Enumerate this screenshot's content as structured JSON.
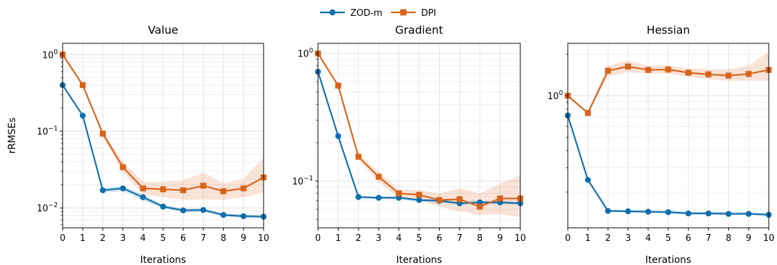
{
  "legend": [
    {
      "name": "ZOD-m",
      "color": "#0f6fae",
      "marker": "circle"
    },
    {
      "name": "DPI",
      "color": "#d9631b",
      "marker": "square"
    }
  ],
  "shared_ylabel": "rRMSEs",
  "chart_data": [
    {
      "type": "line",
      "title": "Value",
      "xlabel": "Iterations",
      "ylabel": "rRMSEs",
      "yscale": "log",
      "xlim": [
        0,
        10
      ],
      "ylim": [
        0.0055,
        1.4
      ],
      "x_ticks": [
        0,
        1,
        2,
        3,
        4,
        5,
        6,
        7,
        8,
        9,
        10
      ],
      "y_ticks": [
        {
          "value": 1,
          "label": "10^0",
          "base": "10",
          "exp": "0"
        },
        {
          "value": 0.1,
          "label": "10^-1",
          "base": "10",
          "exp": "−1"
        },
        {
          "value": 0.01,
          "label": "10^-2",
          "base": "10",
          "exp": "−2"
        }
      ],
      "grid": true,
      "x": [
        0,
        1,
        2,
        3,
        4,
        5,
        6,
        7,
        8,
        9,
        10
      ],
      "series": [
        {
          "name": "ZOD-m",
          "values": [
            0.4,
            0.16,
            0.017,
            0.018,
            0.0138,
            0.0104,
            0.0093,
            0.0094,
            0.0081,
            0.0078,
            0.0077
          ],
          "band_low": [
            0.4,
            0.16,
            0.016,
            0.0165,
            0.0125,
            0.0098,
            0.0088,
            0.0089,
            0.0077,
            0.0074,
            0.0073
          ],
          "band_high": [
            0.4,
            0.16,
            0.018,
            0.0195,
            0.0152,
            0.011,
            0.0098,
            0.0099,
            0.0085,
            0.0082,
            0.0081
          ]
        },
        {
          "name": "DPI",
          "values": [
            1.0,
            0.4,
            0.093,
            0.034,
            0.018,
            0.0175,
            0.017,
            0.0195,
            0.0165,
            0.018,
            0.025
          ],
          "band_low": [
            1.0,
            0.4,
            0.085,
            0.029,
            0.015,
            0.0138,
            0.0128,
            0.0128,
            0.0128,
            0.0138,
            0.016
          ],
          "band_high": [
            1.0,
            0.4,
            0.1,
            0.04,
            0.022,
            0.022,
            0.023,
            0.029,
            0.021,
            0.024,
            0.045
          ]
        }
      ]
    },
    {
      "type": "line",
      "title": "Gradient",
      "xlabel": "Iterations",
      "ylabel": "",
      "yscale": "log",
      "xlim": [
        0,
        10
      ],
      "ylim": [
        0.043,
        1.2
      ],
      "x_ticks": [
        0,
        1,
        2,
        3,
        4,
        5,
        6,
        7,
        8,
        9,
        10
      ],
      "y_ticks": [
        {
          "value": 1,
          "label": "10^0",
          "base": "10",
          "exp": "0"
        },
        {
          "value": 0.1,
          "label": "10^-1",
          "base": "10",
          "exp": "−1"
        }
      ],
      "grid": true,
      "x": [
        0,
        1,
        2,
        3,
        4,
        5,
        6,
        7,
        8,
        9,
        10
      ],
      "series": [
        {
          "name": "ZOD-m",
          "values": [
            0.72,
            0.225,
            0.075,
            0.074,
            0.074,
            0.071,
            0.07,
            0.067,
            0.068,
            0.068,
            0.067
          ],
          "band_low": [
            0.72,
            0.225,
            0.073,
            0.072,
            0.072,
            0.069,
            0.068,
            0.065,
            0.066,
            0.066,
            0.065
          ],
          "band_high": [
            0.72,
            0.225,
            0.077,
            0.076,
            0.076,
            0.073,
            0.072,
            0.069,
            0.07,
            0.07,
            0.069
          ]
        },
        {
          "name": "DPI",
          "values": [
            1.0,
            0.56,
            0.155,
            0.108,
            0.08,
            0.078,
            0.071,
            0.072,
            0.063,
            0.073,
            0.073
          ],
          "band_low": [
            1.0,
            0.56,
            0.148,
            0.098,
            0.074,
            0.071,
            0.063,
            0.058,
            0.054,
            0.055,
            0.052
          ],
          "band_high": [
            1.0,
            0.56,
            0.165,
            0.118,
            0.086,
            0.085,
            0.08,
            0.088,
            0.08,
            0.095,
            0.11
          ]
        }
      ]
    },
    {
      "type": "line",
      "title": "Hessian",
      "xlabel": "Iterations",
      "ylabel": "",
      "yscale": "log",
      "xlim": [
        0,
        10
      ],
      "ylim": [
        0.11,
        2.4
      ],
      "x_ticks": [
        0,
        1,
        2,
        3,
        4,
        5,
        6,
        7,
        8,
        9,
        10
      ],
      "y_ticks": [
        {
          "value": 1,
          "label": "10^0",
          "base": "10",
          "exp": "0"
        }
      ],
      "grid": true,
      "x": [
        0,
        1,
        2,
        3,
        4,
        5,
        6,
        7,
        8,
        9,
        10
      ],
      "series": [
        {
          "name": "ZOD-m",
          "values": [
            0.72,
            0.245,
            0.146,
            0.145,
            0.144,
            0.143,
            0.14,
            0.14,
            0.139,
            0.139,
            0.137
          ],
          "band_low": [
            0.72,
            0.245,
            0.143,
            0.142,
            0.141,
            0.14,
            0.137,
            0.137,
            0.136,
            0.136,
            0.134
          ],
          "band_high": [
            0.72,
            0.245,
            0.149,
            0.148,
            0.148,
            0.147,
            0.144,
            0.144,
            0.143,
            0.143,
            0.141
          ]
        },
        {
          "name": "DPI",
          "values": [
            1.0,
            0.75,
            1.52,
            1.63,
            1.54,
            1.55,
            1.47,
            1.43,
            1.4,
            1.44,
            1.54
          ],
          "band_low": [
            1.0,
            0.75,
            1.38,
            1.48,
            1.45,
            1.45,
            1.38,
            1.32,
            1.28,
            1.28,
            1.28
          ],
          "band_high": [
            1.0,
            0.75,
            1.65,
            1.8,
            1.65,
            1.66,
            1.58,
            1.56,
            1.55,
            1.65,
            2.1
          ]
        }
      ]
    }
  ]
}
